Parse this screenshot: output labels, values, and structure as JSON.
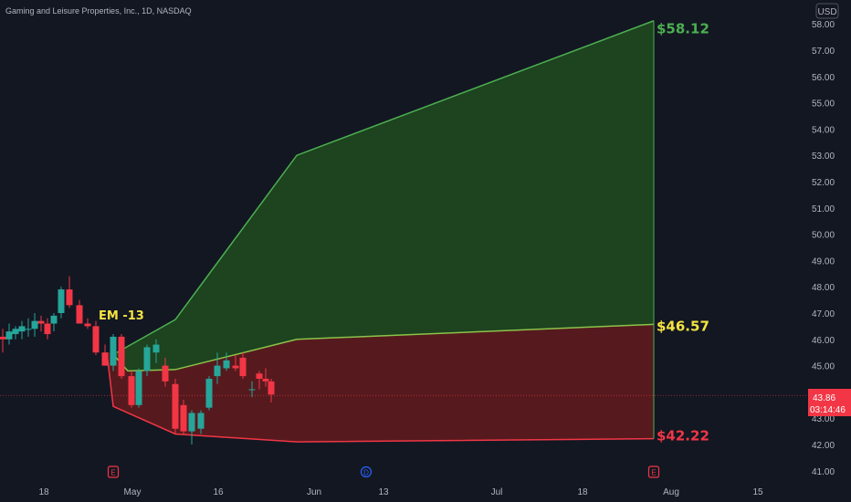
{
  "header": {
    "title": "Gaming and Leisure Properties, Inc., 1D, NASDAQ",
    "currency": "USD"
  },
  "price_badge": {
    "price": "43.86",
    "countdown": "03:14:46"
  },
  "annotations": {
    "em_label": "EM -13",
    "upper_label": "$58.12",
    "mid_label": "$46.57",
    "lower_label": "$42.22"
  },
  "event_markers": [
    {
      "label": "E",
      "x": "Apr 24",
      "kind": "earnings",
      "color": "#f23645"
    },
    {
      "label": "D",
      "x": "Jun 7",
      "kind": "dividend",
      "color": "#2962ff"
    },
    {
      "label": "E",
      "x": "Jul 25",
      "kind": "earnings",
      "color": "#f23645"
    }
  ],
  "colors": {
    "up": "#26a69a",
    "down": "#f23645",
    "upper_fill": "#1e4620",
    "lower_fill": "#5a1a1f",
    "upper_line": "#4caf50",
    "mid_line": "#8bc34a",
    "lower_line": "#f23645"
  },
  "chart_data": {
    "type": "candlestick",
    "title": "Gaming and Leisure Properties, Inc., 1D, NASDAQ",
    "ylim": [
      40.8,
      59.0
    ],
    "y_ticks": [
      "41.00",
      "42.00",
      "43.00",
      "44.00",
      "45.00",
      "46.00",
      "47.00",
      "48.00",
      "49.00",
      "50.00",
      "51.00",
      "52.00",
      "53.00",
      "54.00",
      "55.00",
      "56.00",
      "57.00",
      "58.00"
    ],
    "x_ticks": [
      "18",
      "May",
      "16",
      "Jun",
      "13",
      "Jul",
      "18",
      "Aug",
      "15"
    ],
    "candles": [
      {
        "o": 46.1,
        "h": 46.4,
        "l": 45.5,
        "c": 46.0
      },
      {
        "o": 46.0,
        "h": 46.6,
        "l": 45.8,
        "c": 46.3
      },
      {
        "o": 46.2,
        "h": 46.5,
        "l": 46.0,
        "c": 46.4
      },
      {
        "o": 46.3,
        "h": 46.7,
        "l": 46.0,
        "c": 46.5
      },
      {
        "o": 46.4,
        "h": 46.8,
        "l": 46.1,
        "c": 46.4
      },
      {
        "o": 46.4,
        "h": 47.0,
        "l": 46.1,
        "c": 46.7
      },
      {
        "o": 46.7,
        "h": 46.9,
        "l": 46.3,
        "c": 46.6
      },
      {
        "o": 46.6,
        "h": 46.8,
        "l": 46.0,
        "c": 46.2
      },
      {
        "o": 46.6,
        "h": 47.0,
        "l": 46.3,
        "c": 46.9
      },
      {
        "o": 47.0,
        "h": 48.0,
        "l": 46.8,
        "c": 47.9
      },
      {
        "o": 47.9,
        "h": 48.4,
        "l": 47.2,
        "c": 47.3
      },
      {
        "o": 47.3,
        "h": 47.5,
        "l": 46.6,
        "c": 46.6
      },
      {
        "o": 46.6,
        "h": 46.8,
        "l": 46.4,
        "c": 46.5
      },
      {
        "o": 46.5,
        "h": 46.7,
        "l": 45.4,
        "c": 45.5
      },
      {
        "o": 45.5,
        "h": 45.8,
        "l": 45.0,
        "c": 45.0
      },
      {
        "o": 45.0,
        "h": 46.2,
        "l": 44.8,
        "c": 46.1
      },
      {
        "o": 46.1,
        "h": 46.2,
        "l": 44.5,
        "c": 44.6
      },
      {
        "o": 44.6,
        "h": 44.8,
        "l": 43.4,
        "c": 43.5
      },
      {
        "o": 43.5,
        "h": 44.9,
        "l": 43.4,
        "c": 44.8
      },
      {
        "o": 44.8,
        "h": 45.8,
        "l": 44.6,
        "c": 45.7
      },
      {
        "o": 45.5,
        "h": 46.0,
        "l": 45.1,
        "c": 45.8
      },
      {
        "o": 45.0,
        "h": 45.3,
        "l": 44.2,
        "c": 44.4
      },
      {
        "o": 44.3,
        "h": 44.5,
        "l": 42.4,
        "c": 42.6
      },
      {
        "o": 43.5,
        "h": 43.7,
        "l": 42.4,
        "c": 42.5
      },
      {
        "o": 42.5,
        "h": 43.3,
        "l": 42.0,
        "c": 43.2
      },
      {
        "o": 42.6,
        "h": 43.3,
        "l": 42.4,
        "c": 43.2
      },
      {
        "o": 43.4,
        "h": 44.6,
        "l": 43.3,
        "c": 44.5
      },
      {
        "o": 44.6,
        "h": 45.5,
        "l": 44.3,
        "c": 45.0
      },
      {
        "o": 44.9,
        "h": 45.5,
        "l": 44.8,
        "c": 45.2
      },
      {
        "o": 45.0,
        "h": 45.4,
        "l": 44.8,
        "c": 44.9
      },
      {
        "o": 45.3,
        "h": 45.5,
        "l": 44.5,
        "c": 44.6
      },
      {
        "o": 44.1,
        "h": 44.4,
        "l": 43.8,
        "c": 44.1
      },
      {
        "o": 44.7,
        "h": 44.8,
        "l": 44.1,
        "c": 44.5
      },
      {
        "o": 44.5,
        "h": 44.9,
        "l": 44.2,
        "c": 44.4
      },
      {
        "o": 44.4,
        "h": 44.5,
        "l": 43.6,
        "c": 43.9
      }
    ],
    "upper_band": [
      [
        45.5,
        45.5
      ],
      [
        46.0,
        46.0
      ],
      [
        53.0,
        53.0
      ],
      [
        58.12,
        58.12
      ]
    ],
    "mid_band": [
      [
        45.5,
        45.5
      ],
      [
        44.8,
        44.8
      ],
      [
        46.0,
        46.0
      ],
      [
        46.57,
        46.57
      ]
    ],
    "lower_band": [
      [
        45.5,
        45.5
      ],
      [
        43.5,
        43.5
      ],
      [
        42.1,
        42.1
      ],
      [
        42.22,
        42.22
      ]
    ],
    "current_price": 43.86
  }
}
